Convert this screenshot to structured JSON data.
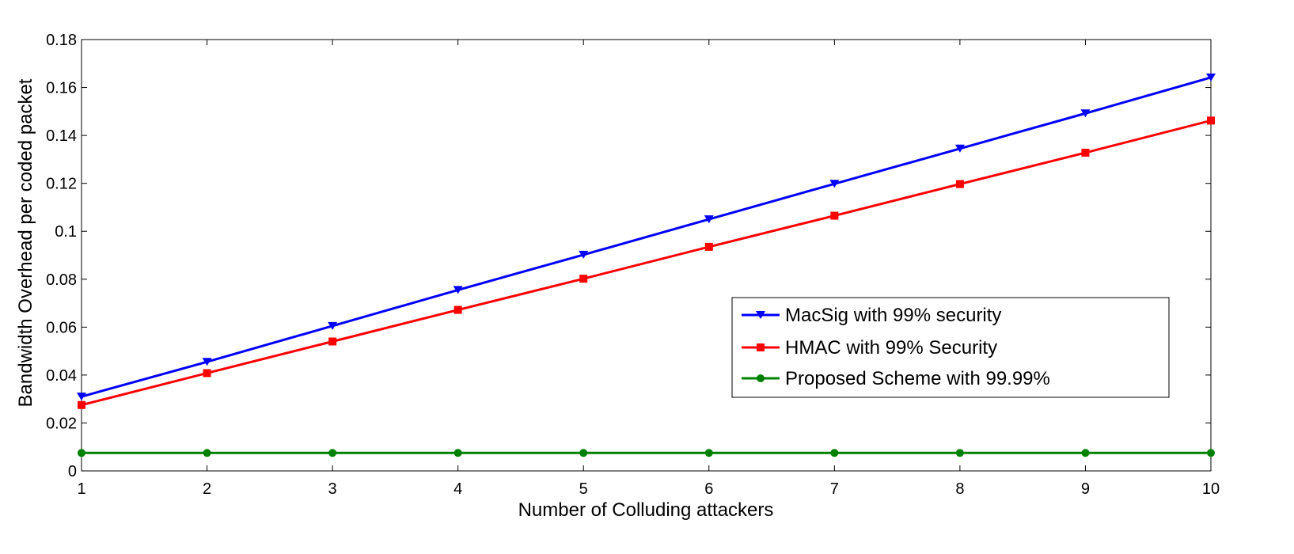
{
  "chart_data": {
    "type": "line",
    "title": "",
    "xlabel": "Number of Colluding attackers",
    "ylabel": "Bandwidth Overhead per coded packet",
    "xlim": [
      1,
      10
    ],
    "ylim": [
      0,
      0.18
    ],
    "x_ticks": [
      "1",
      "2",
      "3",
      "4",
      "5",
      "6",
      "7",
      "8",
      "9",
      "10"
    ],
    "y_ticks": [
      "0",
      "0.02",
      "0.04",
      "0.06",
      "0.08",
      "0.1",
      "0.12",
      "0.14",
      "0.16",
      "0.18"
    ],
    "grid": false,
    "legend_position": "center-right",
    "x": [
      1,
      2,
      3,
      4,
      5,
      6,
      7,
      8,
      9,
      10
    ],
    "series": [
      {
        "name": "MacSig with 99% security",
        "color": "#0000ff",
        "marker": "triangle-down",
        "values": [
          0.031,
          0.0455,
          0.0605,
          0.0755,
          0.0902,
          0.105,
          0.1198,
          0.1345,
          0.1492,
          0.1642
        ]
      },
      {
        "name": "HMAC with 99% Security",
        "color": "#ff0000",
        "marker": "square",
        "values": [
          0.0275,
          0.0408,
          0.054,
          0.0672,
          0.0802,
          0.0935,
          0.1065,
          0.1197,
          0.1328,
          0.1462
        ]
      },
      {
        "name": "Proposed Scheme with 99.99%",
        "color": "#008000",
        "marker": "circle",
        "values": [
          0.0075,
          0.0075,
          0.0075,
          0.0075,
          0.0075,
          0.0075,
          0.0075,
          0.0075,
          0.0075,
          0.0075
        ]
      }
    ]
  }
}
